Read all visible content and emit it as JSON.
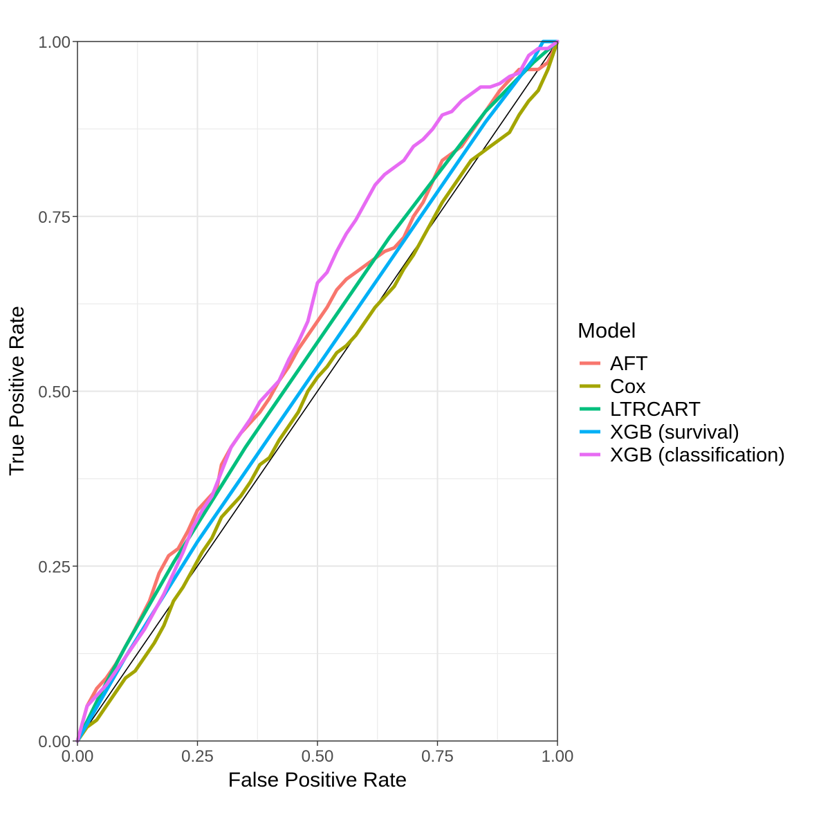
{
  "chart_data": {
    "type": "line",
    "xlabel": "False Positive Rate",
    "ylabel": "True Positive Rate",
    "xlim": [
      0,
      1
    ],
    "ylim": [
      0,
      1
    ],
    "x_ticks": [
      "0.00",
      "0.25",
      "0.50",
      "0.75",
      "1.00"
    ],
    "y_ticks": [
      "0.00",
      "0.25",
      "0.50",
      "0.75",
      "1.00"
    ],
    "grid": true,
    "legend_title": "Model",
    "legend_position": "right",
    "reference_line": {
      "x": [
        0,
        1
      ],
      "y": [
        0,
        1
      ],
      "color": "#000000"
    },
    "series": [
      {
        "name": "AFT",
        "color": "#F8766D",
        "x": [
          0,
          0.02,
          0.04,
          0.06,
          0.08,
          0.1,
          0.12,
          0.15,
          0.17,
          0.19,
          0.21,
          0.23,
          0.25,
          0.27,
          0.29,
          0.3,
          0.32,
          0.34,
          0.36,
          0.38,
          0.4,
          0.42,
          0.44,
          0.46,
          0.48,
          0.5,
          0.52,
          0.54,
          0.56,
          0.58,
          0.6,
          0.62,
          0.64,
          0.66,
          0.68,
          0.7,
          0.72,
          0.74,
          0.76,
          0.78,
          0.8,
          0.82,
          0.84,
          0.86,
          0.88,
          0.9,
          0.92,
          0.94,
          0.96,
          0.98,
          1.0
        ],
        "y": [
          0,
          0.05,
          0.075,
          0.09,
          0.11,
          0.135,
          0.16,
          0.2,
          0.24,
          0.265,
          0.275,
          0.3,
          0.33,
          0.345,
          0.36,
          0.395,
          0.42,
          0.44,
          0.455,
          0.47,
          0.49,
          0.515,
          0.535,
          0.56,
          0.58,
          0.6,
          0.62,
          0.645,
          0.66,
          0.67,
          0.68,
          0.69,
          0.7,
          0.705,
          0.72,
          0.75,
          0.77,
          0.8,
          0.83,
          0.84,
          0.85,
          0.87,
          0.89,
          0.91,
          0.93,
          0.945,
          0.96,
          0.96,
          0.96,
          0.97,
          1.0
        ]
      },
      {
        "name": "Cox",
        "color": "#A3A500",
        "x": [
          0,
          0.02,
          0.04,
          0.06,
          0.08,
          0.1,
          0.12,
          0.14,
          0.16,
          0.18,
          0.2,
          0.22,
          0.24,
          0.26,
          0.28,
          0.3,
          0.32,
          0.34,
          0.36,
          0.38,
          0.4,
          0.42,
          0.44,
          0.46,
          0.48,
          0.5,
          0.52,
          0.54,
          0.56,
          0.58,
          0.6,
          0.62,
          0.64,
          0.66,
          0.68,
          0.7,
          0.72,
          0.74,
          0.76,
          0.78,
          0.8,
          0.82,
          0.84,
          0.86,
          0.88,
          0.9,
          0.92,
          0.94,
          0.96,
          0.98,
          1.0
        ],
        "y": [
          0,
          0.02,
          0.03,
          0.05,
          0.07,
          0.09,
          0.1,
          0.12,
          0.14,
          0.165,
          0.2,
          0.22,
          0.245,
          0.27,
          0.29,
          0.32,
          0.335,
          0.35,
          0.37,
          0.395,
          0.405,
          0.43,
          0.45,
          0.47,
          0.5,
          0.52,
          0.535,
          0.555,
          0.565,
          0.58,
          0.6,
          0.62,
          0.635,
          0.65,
          0.675,
          0.695,
          0.72,
          0.745,
          0.77,
          0.79,
          0.81,
          0.83,
          0.84,
          0.85,
          0.86,
          0.87,
          0.895,
          0.915,
          0.93,
          0.96,
          1.0
        ]
      },
      {
        "name": "LTRCART",
        "color": "#00BF7D",
        "x": [
          0,
          0.05,
          0.1,
          0.15,
          0.2,
          0.25,
          0.3,
          0.35,
          0.4,
          0.45,
          0.5,
          0.55,
          0.6,
          0.65,
          0.7,
          0.75,
          0.8,
          0.85,
          0.9,
          0.95,
          1.0
        ],
        "y": [
          0,
          0.07,
          0.135,
          0.195,
          0.255,
          0.31,
          0.365,
          0.42,
          0.47,
          0.52,
          0.57,
          0.62,
          0.67,
          0.72,
          0.765,
          0.81,
          0.855,
          0.9,
          0.935,
          0.97,
          1.0
        ]
      },
      {
        "name": "XGB (survival)",
        "color": "#00B0F6",
        "x": [
          0,
          0.05,
          0.1,
          0.15,
          0.2,
          0.25,
          0.3,
          0.35,
          0.4,
          0.45,
          0.5,
          0.55,
          0.6,
          0.65,
          0.7,
          0.75,
          0.8,
          0.85,
          0.9,
          0.95,
          0.97,
          1.0
        ],
        "y": [
          0,
          0.06,
          0.12,
          0.175,
          0.23,
          0.285,
          0.335,
          0.385,
          0.435,
          0.485,
          0.535,
          0.585,
          0.635,
          0.685,
          0.735,
          0.785,
          0.835,
          0.885,
          0.93,
          0.975,
          1.0,
          1.0
        ]
      },
      {
        "name": "XGB (classification)",
        "color": "#E76BF3",
        "x": [
          0,
          0.02,
          0.04,
          0.06,
          0.08,
          0.1,
          0.12,
          0.14,
          0.16,
          0.18,
          0.2,
          0.22,
          0.24,
          0.26,
          0.28,
          0.3,
          0.32,
          0.34,
          0.36,
          0.38,
          0.4,
          0.42,
          0.44,
          0.46,
          0.48,
          0.5,
          0.52,
          0.54,
          0.56,
          0.58,
          0.6,
          0.62,
          0.64,
          0.66,
          0.68,
          0.7,
          0.72,
          0.74,
          0.76,
          0.78,
          0.8,
          0.82,
          0.84,
          0.86,
          0.88,
          0.9,
          0.92,
          0.94,
          0.96,
          0.98,
          1.0
        ],
        "y": [
          0,
          0.05,
          0.065,
          0.08,
          0.1,
          0.12,
          0.14,
          0.16,
          0.185,
          0.21,
          0.24,
          0.27,
          0.305,
          0.33,
          0.35,
          0.385,
          0.42,
          0.44,
          0.46,
          0.485,
          0.5,
          0.515,
          0.545,
          0.57,
          0.6,
          0.655,
          0.67,
          0.7,
          0.725,
          0.745,
          0.77,
          0.795,
          0.81,
          0.82,
          0.83,
          0.85,
          0.86,
          0.875,
          0.895,
          0.9,
          0.915,
          0.925,
          0.935,
          0.935,
          0.94,
          0.95,
          0.955,
          0.98,
          0.99,
          0.99,
          1.0
        ]
      }
    ]
  }
}
